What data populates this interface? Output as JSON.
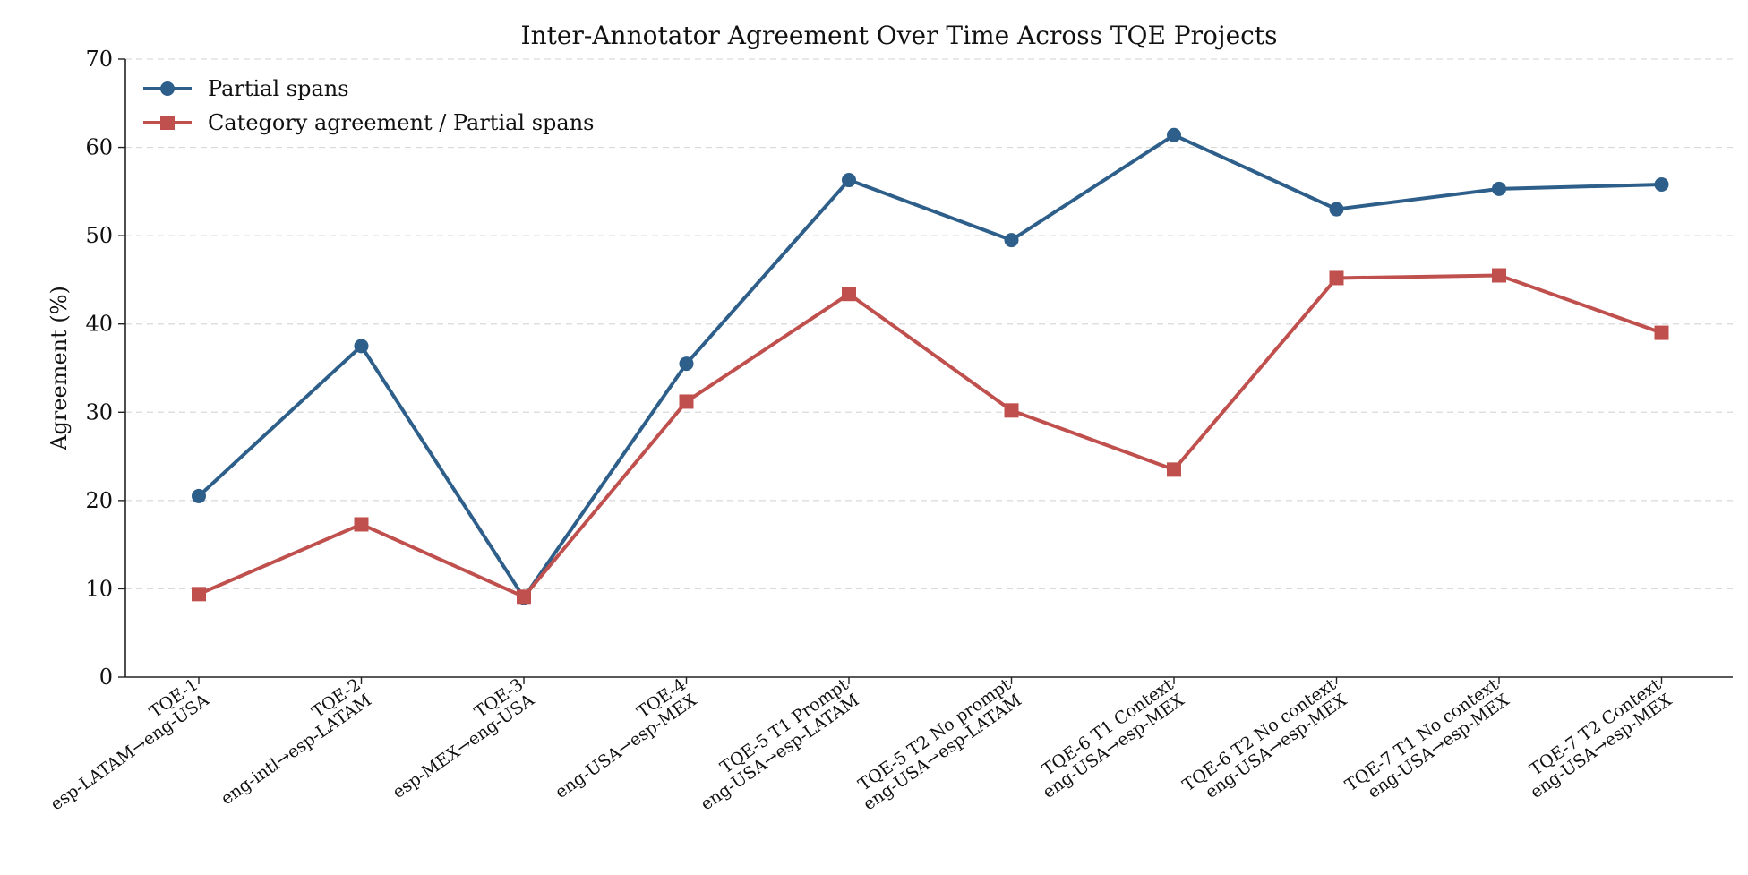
{
  "chart_data": {
    "type": "line",
    "title": "Inter-Annotator Agreement Over Time Across TQE Projects",
    "xlabel": "",
    "ylabel": "Agreement (%)",
    "ylim": [
      0,
      70
    ],
    "yticks": [
      0,
      10,
      20,
      30,
      40,
      50,
      60,
      70
    ],
    "grid": "horizontal dashed",
    "legend_position": "top-left",
    "categories": [
      [
        "TQE-1",
        "esp-LATAM→eng-USA"
      ],
      [
        "TQE-2",
        "eng-intl→esp-LATAM"
      ],
      [
        "TQE-3",
        "esp-MEX→eng-USA"
      ],
      [
        "TQE-4",
        "eng-USA→esp-MEX"
      ],
      [
        "TQE-5 T1 Prompt",
        "eng-USA→esp-LATAM"
      ],
      [
        "TQE-5 T2 No prompt",
        "eng-USA→esp-LATAM"
      ],
      [
        "TQE-6 T1 Context",
        "eng-USA→esp-MEX"
      ],
      [
        "TQE-6 T2 No context",
        "eng-USA→esp-MEX"
      ],
      [
        "TQE-7 T1 No context",
        "eng-USA→esp-MEX"
      ],
      [
        "TQE-7 T2 Context",
        "eng-USA→esp-MEX"
      ]
    ],
    "series": [
      {
        "name": "Partial spans",
        "color": "#2d5f8a",
        "marker": "circle",
        "values": [
          20.5,
          37.5,
          9.0,
          35.5,
          56.3,
          49.5,
          61.4,
          53.0,
          55.3,
          55.8
        ]
      },
      {
        "name": "Category agreement / Partial spans",
        "color": "#c0504d",
        "marker": "square",
        "values": [
          9.4,
          17.3,
          9.1,
          31.2,
          43.4,
          30.2,
          23.5,
          45.2,
          45.5,
          39.0
        ]
      }
    ]
  }
}
